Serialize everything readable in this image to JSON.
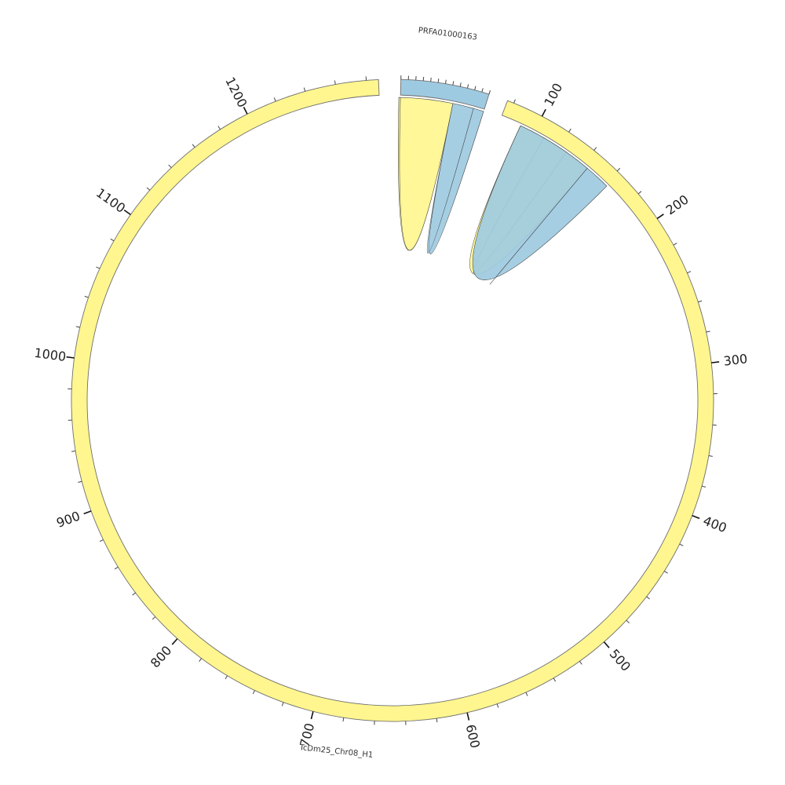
{
  "diagram": {
    "type": "circos",
    "colors": {
      "chromosome": "#fff68f",
      "scaffold": "#9ecae1",
      "outline": "#6f6f6f",
      "ribbon_outline": "#3f3f3f"
    },
    "segments": [
      {
        "id": "scaffold",
        "label": "PRFA01000163",
        "color": "#9ecae1",
        "start_deg": 1.5,
        "end_deg": 17.5,
        "tick_every": 10,
        "length": 120
      },
      {
        "id": "chromosome",
        "label": "TcDm25_Chr08_H1",
        "color": "#fff68f",
        "start_deg": 21,
        "end_deg": 357.5,
        "units_per_deg": 3.6025,
        "tick_every": 20,
        "label_every": 100,
        "ticks": [
          "100",
          "200",
          "300",
          "400",
          "500",
          "600",
          "700",
          "800",
          "900",
          "1000",
          "1100",
          "1200"
        ]
      }
    ],
    "links": [
      {
        "from": "scaffold",
        "to": "chromosome",
        "from_range_deg": [
          1.5,
          11.5
        ],
        "to_range_deg": [
          1.2,
          11.5
        ],
        "color": "#fff68f"
      },
      {
        "from": "scaffold",
        "to": "chromosome",
        "from_range_deg": [
          11.5,
          17.5
        ],
        "to_range_deg": [
          11.5,
          15.5
        ],
        "color": "#9ecae1"
      },
      {
        "from": "chromosome",
        "to": "scaffold",
        "from_range_deg": [
          30,
          40
        ],
        "to_range_deg": [
          25,
          35
        ],
        "color": "#fff68f"
      },
      {
        "from": "chromosome",
        "to": "scaffold",
        "from_range_deg": [
          40,
          45
        ],
        "to_range_deg": [
          25,
          40
        ],
        "color": "#9ecae1"
      }
    ]
  }
}
